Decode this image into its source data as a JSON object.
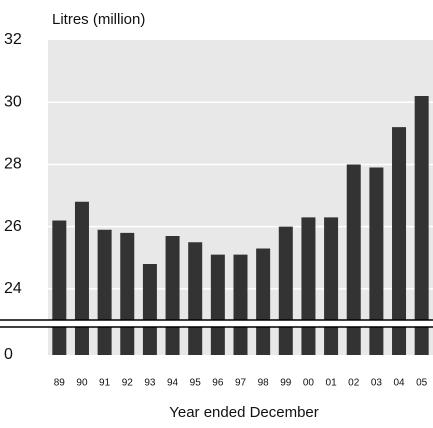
{
  "chart_data": {
    "type": "bar",
    "y_label": "Litres (million)",
    "x_label": "Year ended December",
    "categories": [
      "89",
      "90",
      "91",
      "92",
      "93",
      "94",
      "95",
      "96",
      "97",
      "98",
      "99",
      "00",
      "01",
      "02",
      "03",
      "04",
      "05"
    ],
    "values": [
      26.2,
      26.8,
      25.9,
      25.8,
      24.8,
      25.7,
      25.5,
      25.1,
      25.1,
      25.3,
      26.0,
      26.3,
      26.3,
      28.0,
      27.9,
      29.2,
      30.2
    ],
    "color": "#333333",
    "ylim": [
      0,
      32
    ],
    "axis_break": [
      1,
      23
    ],
    "yticks": [
      0,
      24,
      26,
      28,
      30,
      32
    ],
    "grid": true
  }
}
